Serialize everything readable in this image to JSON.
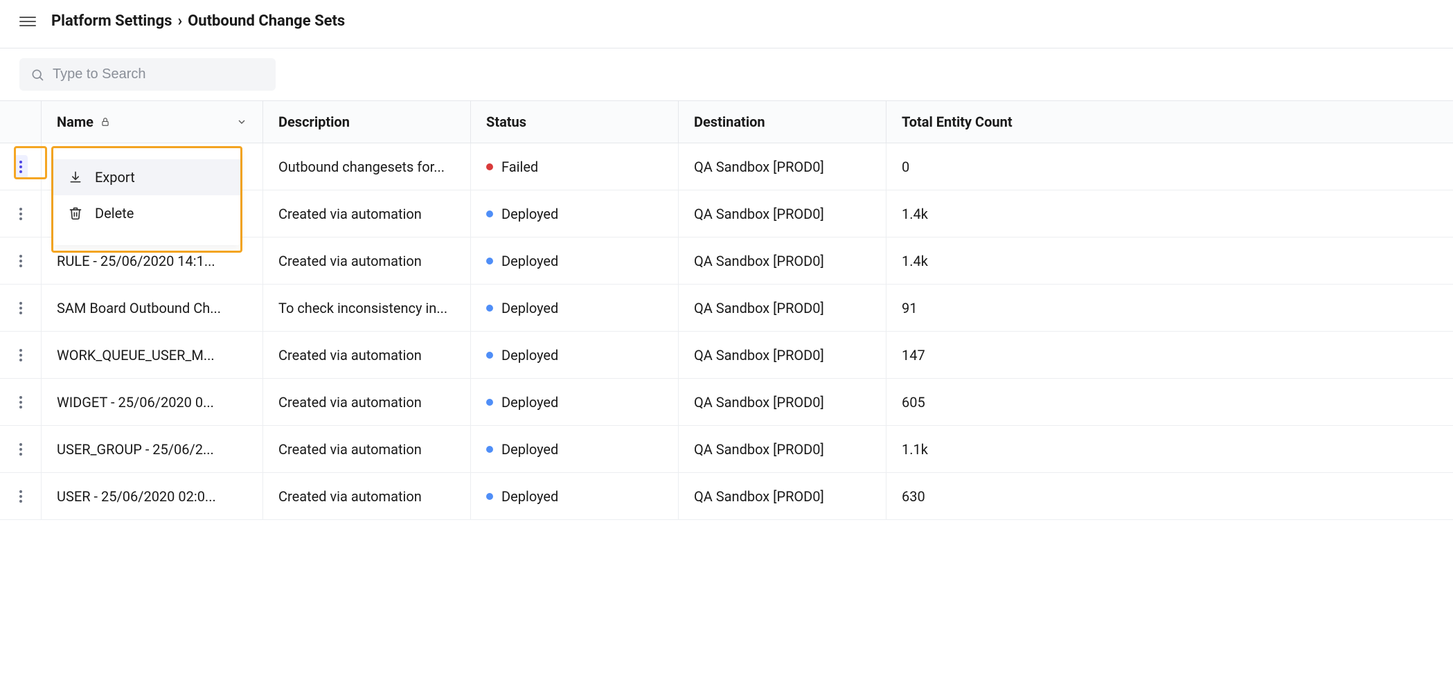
{
  "breadcrumb": {
    "parent": "Platform Settings",
    "current": "Outbound Change Sets"
  },
  "search": {
    "placeholder": "Type to Search"
  },
  "columns": {
    "name": "Name",
    "description": "Description",
    "status": "Status",
    "destination": "Destination",
    "count": "Total Entity Count"
  },
  "menu": {
    "export": "Export",
    "delete": "Delete"
  },
  "colors": {
    "failed": "#d93a3a",
    "deployed": "#4f8ef7",
    "highlight": "#f5a623",
    "active_kebab": "#4f46e5"
  },
  "rows": [
    {
      "name": "",
      "description": "Outbound changesets for...",
      "status_label": "Failed",
      "status_key": "failed",
      "destination": "QA Sandbox [PROD0]",
      "count": "0",
      "active": true
    },
    {
      "name": "",
      "description": "Created via automation",
      "status_label": "Deployed",
      "status_key": "deployed",
      "destination": "QA Sandbox [PROD0]",
      "count": "1.4k",
      "active": false
    },
    {
      "name": "RULE - 25/06/2020 14:1...",
      "description": "Created via automation",
      "status_label": "Deployed",
      "status_key": "deployed",
      "destination": "QA Sandbox [PROD0]",
      "count": "1.4k",
      "active": false
    },
    {
      "name": "SAM Board Outbound Ch...",
      "description": "To check inconsistency in...",
      "status_label": "Deployed",
      "status_key": "deployed",
      "destination": "QA Sandbox [PROD0]",
      "count": "91",
      "active": false
    },
    {
      "name": "WORK_QUEUE_USER_M...",
      "description": "Created via automation",
      "status_label": "Deployed",
      "status_key": "deployed",
      "destination": "QA Sandbox [PROD0]",
      "count": "147",
      "active": false
    },
    {
      "name": "WIDGET - 25/06/2020 0...",
      "description": "Created via automation",
      "status_label": "Deployed",
      "status_key": "deployed",
      "destination": "QA Sandbox [PROD0]",
      "count": "605",
      "active": false
    },
    {
      "name": "USER_GROUP - 25/06/2...",
      "description": "Created via automation",
      "status_label": "Deployed",
      "status_key": "deployed",
      "destination": "QA Sandbox [PROD0]",
      "count": "1.1k",
      "active": false
    },
    {
      "name": "USER - 25/06/2020 02:0...",
      "description": "Created via automation",
      "status_label": "Deployed",
      "status_key": "deployed",
      "destination": "QA Sandbox [PROD0]",
      "count": "630",
      "active": false
    }
  ]
}
